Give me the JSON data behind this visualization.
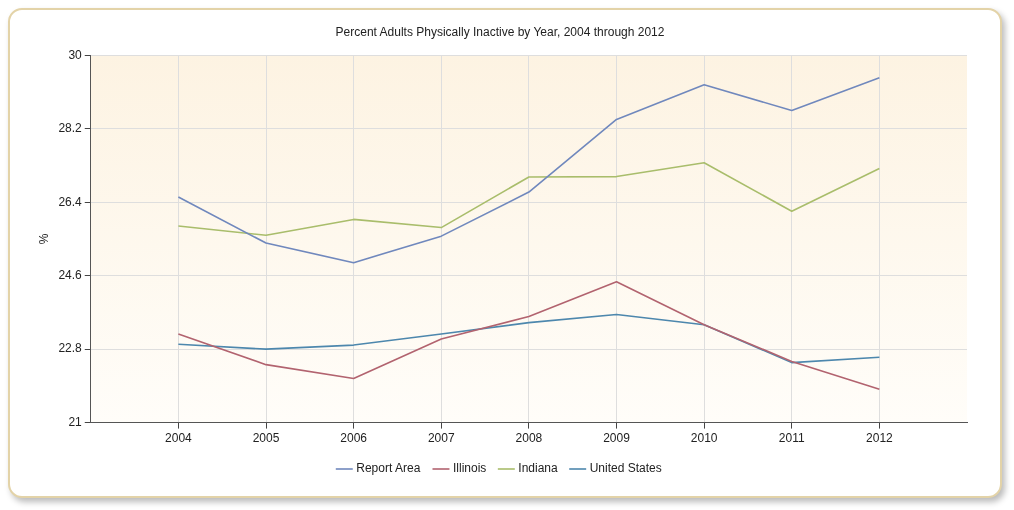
{
  "chart_data": {
    "type": "line",
    "title": "Percent Adults Physically Inactive by Year, 2004 through 2012",
    "ylabel": "%",
    "x": [
      2004,
      2005,
      2006,
      2007,
      2008,
      2009,
      2010,
      2011,
      2012
    ],
    "xlim": [
      2003,
      2013
    ],
    "xticks": [
      2004,
      2005,
      2006,
      2007,
      2008,
      2009,
      2010,
      2011,
      2012
    ],
    "ylim": [
      21,
      30
    ],
    "yticks": [
      21,
      22.8,
      24.6,
      26.4,
      28.2,
      30
    ],
    "series": [
      {
        "name": "Report Area",
        "color": "#7088bd",
        "values": [
          26.53,
          25.4,
          24.92,
          25.57,
          26.65,
          28.43,
          29.28,
          28.65,
          29.45
        ]
      },
      {
        "name": "Illinois",
        "color": "#b2636f",
        "values": [
          23.17,
          22.42,
          22.08,
          23.05,
          23.6,
          24.45,
          23.4,
          22.5,
          21.82
        ]
      },
      {
        "name": "Indiana",
        "color": "#a9bd6b",
        "values": [
          25.82,
          25.59,
          25.98,
          25.78,
          27.02,
          27.03,
          27.37,
          26.18,
          27.23
        ]
      },
      {
        "name": "United States",
        "color": "#4d87ad",
        "values": [
          22.92,
          22.8,
          22.9,
          23.17,
          23.45,
          23.65,
          23.4,
          22.47,
          22.6
        ]
      }
    ],
    "grid": true,
    "legend": "bottom",
    "marker": "none",
    "line_style": "solid"
  }
}
